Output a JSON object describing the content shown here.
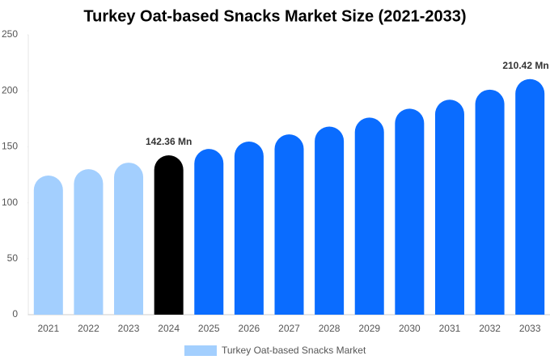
{
  "chart_data": {
    "type": "bar",
    "title": "Turkey Oat-based Snacks Market Size (2021-2033)",
    "categories": [
      "2021",
      "2022",
      "2023",
      "2024",
      "2025",
      "2026",
      "2027",
      "2028",
      "2029",
      "2030",
      "2031",
      "2032",
      "2033"
    ],
    "series": [
      {
        "name": "Turkey Oat-based Snacks Market",
        "color": "#a3cffe",
        "values": [
          124.3,
          130,
          135.8,
          142.36,
          148,
          154.6,
          161,
          168,
          176,
          184,
          192,
          201,
          210.42
        ],
        "value_labels": [
          null,
          null,
          null,
          "142.36 Mn",
          null,
          null,
          null,
          null,
          null,
          null,
          null,
          null,
          "210.42 Mn"
        ],
        "colors": [
          "#a3cffe",
          "#a3cffe",
          "#a3cffe",
          "#000000",
          "#0a6cff",
          "#0a6cff",
          "#0a6cff",
          "#0a6cff",
          "#0a6cff",
          "#0a6cff",
          "#0a6cff",
          "#0a6cff",
          "#0a6cff"
        ]
      }
    ],
    "ylim": [
      0,
      250
    ],
    "yticks": [
      0,
      50,
      100,
      150,
      200,
      250
    ],
    "grid": false,
    "legend": "bottom"
  }
}
